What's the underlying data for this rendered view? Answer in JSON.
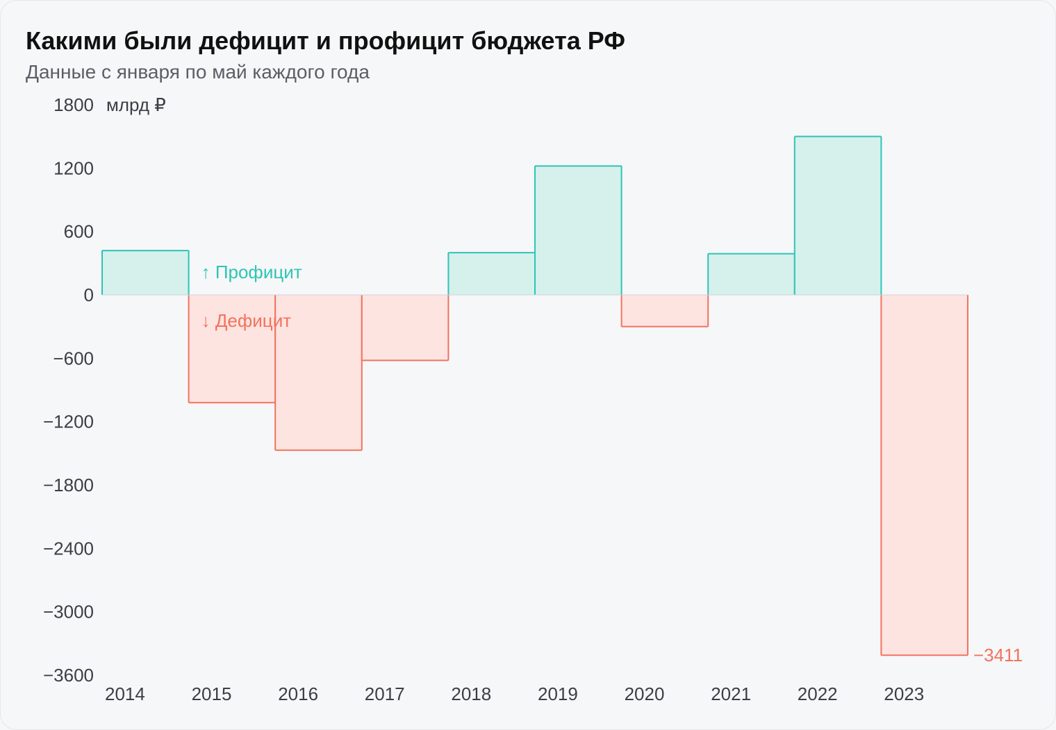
{
  "title": "Какими были дефицит и профицит бюджета РФ",
  "subtitle": "Данные с января по май каждого года",
  "chart": {
    "type": "bar",
    "unit_label": "млрд ₽",
    "categories": [
      "2014",
      "2015",
      "2016",
      "2017",
      "2018",
      "2019",
      "2020",
      "2021",
      "2022",
      "2023"
    ],
    "values": [
      420,
      -1020,
      -1470,
      -620,
      400,
      1220,
      -300,
      390,
      1500,
      -3411
    ],
    "ylim": [
      -3600,
      1800
    ],
    "ytick_step": 600,
    "yticks": [
      1800,
      1200,
      600,
      0,
      -600,
      -1200,
      -1800,
      -2400,
      -3000,
      -3600
    ],
    "ytick_labels": [
      "1800",
      "1200",
      "600",
      "0",
      "−600",
      "−1200",
      "−1800",
      "−2400",
      "−3000",
      "−3600"
    ],
    "colors": {
      "background": "#f6f7f8",
      "border": "#e5e7eb",
      "axis_zero": "#cfd3d8",
      "positive_fill": "#d6f0ec",
      "positive_stroke": "#2ec4b6",
      "negative_fill": "#fde4e0",
      "negative_stroke": "#f2725e",
      "tick_text": "#3a3f45",
      "title_text": "#111111",
      "subtitle_text": "#5a5f66"
    },
    "legend": {
      "positive": "Профицит",
      "negative": "Дефицит"
    },
    "callout": {
      "index": 9,
      "text": "−3411"
    },
    "bar_gap": 0,
    "stroke_width": 2
  }
}
